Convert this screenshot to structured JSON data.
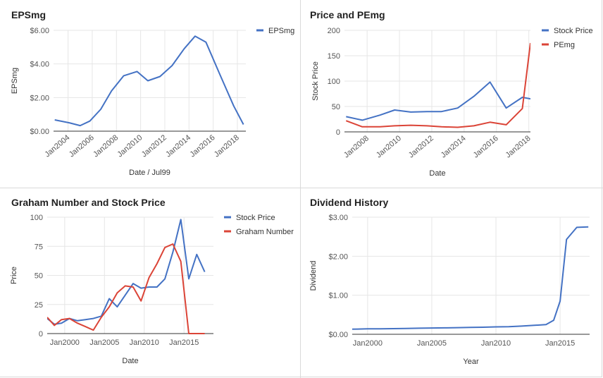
{
  "chart_data": [
    {
      "type": "line",
      "title": "EPSmg",
      "xlabel": "Date / Jul99",
      "ylabel": "EPSmg",
      "xlim": [
        2002.8,
        2018.7
      ],
      "ylim": [
        0,
        6
      ],
      "yticks": [
        0,
        2,
        4,
        6
      ],
      "ytick_labels": [
        "$0.00",
        "$2.00",
        "$4.00",
        "$6.00"
      ],
      "xticks": [
        2004,
        2006,
        2008,
        2010,
        2012,
        2014,
        2016,
        2018
      ],
      "xtick_labels": [
        "Jan2004",
        "Jan2006",
        "Jan2008",
        "Jan2010",
        "Jan2012",
        "Jan2014",
        "Jan2016",
        "Jan2018"
      ],
      "x_tick_rotated": true,
      "grid": true,
      "legend_position": "top-right",
      "series": [
        {
          "name": "EPSmg",
          "color": "#4472c4",
          "x": [
            2002.9,
            2004.1,
            2005.0,
            2005.8,
            2006.7,
            2007.6,
            2008.6,
            2009.7,
            2010.6,
            2011.6,
            2012.6,
            2013.6,
            2014.5,
            2015.4,
            2016.6,
            2017.7,
            2018.5
          ],
          "y": [
            0.67,
            0.5,
            0.33,
            0.6,
            1.3,
            2.4,
            3.3,
            3.55,
            3.0,
            3.25,
            3.9,
            4.9,
            5.65,
            5.3,
            3.3,
            1.5,
            0.4
          ]
        }
      ]
    },
    {
      "type": "line",
      "title": "Price and PEmg",
      "xlabel": "Date",
      "ylabel": "Stock Price",
      "xlim": [
        2006.6,
        2018.1
      ],
      "ylim": [
        0,
        200
      ],
      "yticks": [
        0,
        50,
        100,
        150,
        200
      ],
      "ytick_labels": [
        "0",
        "50",
        "100",
        "150",
        "200"
      ],
      "xticks": [
        2008,
        2010,
        2012,
        2014,
        2016,
        2018
      ],
      "xtick_labels": [
        "Jan2008",
        "Jan2010",
        "Jan2012",
        "Jan2014",
        "Jan2016",
        "Jan2018"
      ],
      "x_tick_rotated": true,
      "grid": true,
      "legend_position": "top-right",
      "series": [
        {
          "name": "Stock Price",
          "color": "#4472c4",
          "x": [
            2006.7,
            2007.7,
            2008.8,
            2009.7,
            2010.7,
            2011.7,
            2012.6,
            2013.6,
            2014.6,
            2015.6,
            2016.6,
            2017.6,
            2018.1
          ],
          "y": [
            30,
            23,
            33,
            43,
            39,
            40,
            40,
            47,
            70,
            98,
            47,
            68,
            65
          ]
        },
        {
          "name": "PEmg",
          "color": "#db4437",
          "x": [
            2006.7,
            2007.7,
            2008.8,
            2009.7,
            2010.7,
            2011.7,
            2012.6,
            2013.6,
            2014.6,
            2015.6,
            2016.6,
            2017.6,
            2018.1
          ],
          "y": [
            22,
            10,
            10,
            12,
            13,
            12,
            10,
            9,
            12,
            19,
            14,
            46,
            175
          ]
        }
      ]
    },
    {
      "type": "line",
      "title": "Graham Number and Stock Price",
      "xlabel": "Date",
      "ylabel": "Price",
      "xlim": [
        1997.8,
        2018.7
      ],
      "ylim": [
        0,
        100
      ],
      "yticks": [
        0,
        25,
        50,
        75,
        100
      ],
      "ytick_labels": [
        "0",
        "25",
        "50",
        "75",
        "100"
      ],
      "xticks": [
        2000,
        2005,
        2010,
        2015
      ],
      "xtick_labels": [
        "Jan2000",
        "Jan2005",
        "Jan2010",
        "Jan2015"
      ],
      "x_tick_rotated": false,
      "grid": true,
      "legend_position": "top-right",
      "series": [
        {
          "name": "Stock Price",
          "color": "#4472c4",
          "x": [
            1997.8,
            1998.7,
            1999.6,
            2000.6,
            2001.6,
            2002.6,
            2003.6,
            2004.6,
            2005.6,
            2006.6,
            2007.6,
            2008.6,
            2009.6,
            2010.6,
            2011.6,
            2012.6,
            2013.6,
            2014.6,
            2015.6,
            2016.6,
            2017.6
          ],
          "y": [
            13,
            8,
            9,
            13,
            11,
            12,
            13,
            15,
            30,
            23,
            33,
            43,
            39,
            40,
            40,
            47,
            70,
            98,
            47,
            68,
            53
          ]
        },
        {
          "name": "Graham Number",
          "color": "#db4437",
          "x": [
            1997.8,
            1998.7,
            1999.6,
            2000.6,
            2001.6,
            2002.6,
            2003.6,
            2004.6,
            2005.6,
            2006.6,
            2007.6,
            2008.6,
            2009.6,
            2010.6,
            2011.6,
            2012.6,
            2013.6,
            2014.6,
            2015.6,
            2016.6,
            2017.6
          ],
          "y": [
            14,
            7,
            12,
            13,
            9,
            6,
            3,
            14,
            23,
            35,
            41,
            40,
            28,
            48,
            60,
            74,
            77,
            62,
            0,
            0,
            0
          ]
        }
      ]
    },
    {
      "type": "line",
      "title": "Dividend History",
      "xlabel": "Year",
      "ylabel": "Dividend",
      "xlim": [
        1998.8,
        2017.3
      ],
      "ylim": [
        0,
        3
      ],
      "yticks": [
        0,
        1,
        2,
        3
      ],
      "ytick_labels": [
        "$0.00",
        "$1.00",
        "$2.00",
        "$3.00"
      ],
      "xticks": [
        2000,
        2005,
        2010,
        2015
      ],
      "xtick_labels": [
        "Jan2000",
        "Jan2005",
        "Jan2010",
        "Jan2015"
      ],
      "x_tick_rotated": false,
      "grid": true,
      "legend_position": "none",
      "series": [
        {
          "name": "",
          "color": "#4472c4",
          "x": [
            1998.8,
            2000.0,
            2001.0,
            2002.0,
            2003.0,
            2004.0,
            2005.0,
            2006.0,
            2007.0,
            2008.0,
            2009.0,
            2010.0,
            2011.0,
            2012.0,
            2013.0,
            2013.9,
            2014.5,
            2015.0,
            2015.5,
            2016.3,
            2017.2
          ],
          "y": [
            0.13,
            0.14,
            0.14,
            0.145,
            0.15,
            0.155,
            0.16,
            0.165,
            0.17,
            0.175,
            0.18,
            0.19,
            0.195,
            0.21,
            0.23,
            0.25,
            0.36,
            0.85,
            2.43,
            2.74,
            2.75
          ]
        }
      ]
    }
  ]
}
